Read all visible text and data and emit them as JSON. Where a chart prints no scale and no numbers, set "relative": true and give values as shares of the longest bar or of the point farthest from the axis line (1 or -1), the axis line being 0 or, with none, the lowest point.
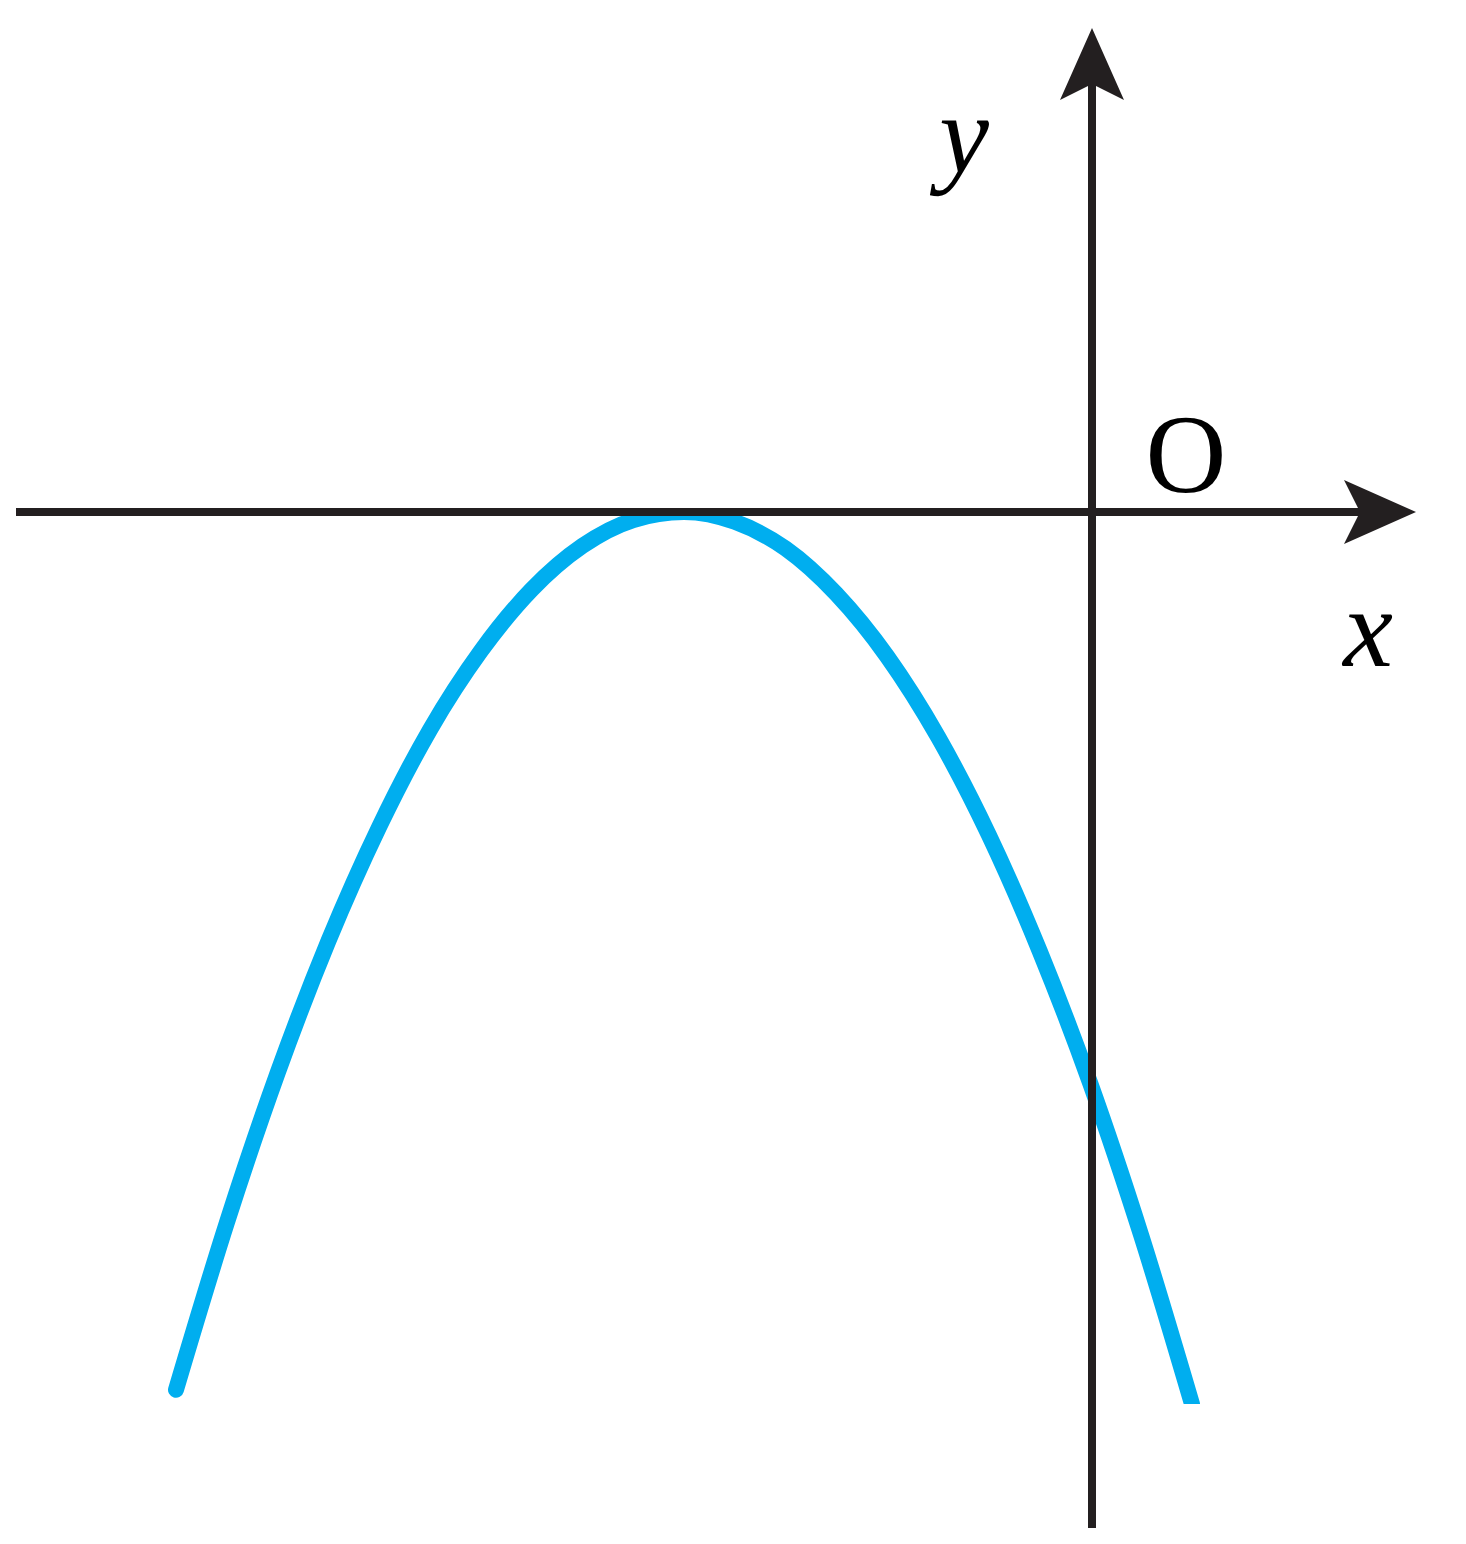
{
  "chart_data": {
    "type": "line",
    "relative": true,
    "xlabel": "x",
    "ylabel": "y",
    "annotations": [
      "O"
    ],
    "marker": "none",
    "categories": [
      null,
      null,
      null,
      null,
      null,
      null,
      null,
      null,
      null,
      null,
      null,
      null,
      null,
      null,
      null,
      null,
      null,
      null,
      null,
      null,
      null
    ],
    "series": [
      {
        "color": "#00aeef",
        "values": [
          -0.984,
          -0.797,
          -0.629,
          -0.481,
          -0.353,
          -0.244,
          -0.156,
          -0.087,
          -0.038,
          -0.009,
          0,
          -0.011,
          -0.041,
          -0.092,
          -0.162,
          -0.252,
          -0.362,
          -0.492,
          -0.641,
          -0.811,
          -1
        ]
      }
    ]
  }
}
